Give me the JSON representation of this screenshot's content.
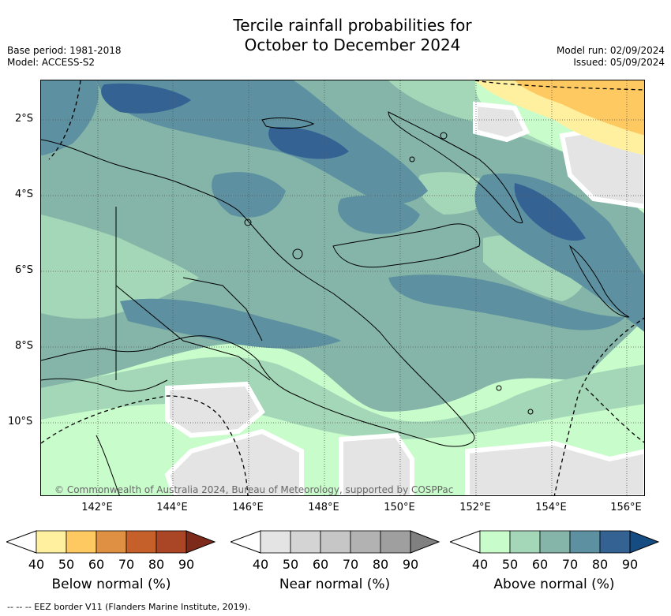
{
  "title_line1": "Tercile rainfall probabilities for",
  "title_line2": "October to December 2024",
  "base_period": "Base period: 1981-2018",
  "model": "Model: ACCESS-S2",
  "model_run": "Model run: 02/09/2024",
  "issued": "Issued: 05/09/2024",
  "lat_labels": [
    "2°S",
    "4°S",
    "6°S",
    "8°S",
    "10°S"
  ],
  "lon_labels": [
    "142°E",
    "144°E",
    "146°E",
    "148°E",
    "150°E",
    "152°E",
    "154°E",
    "156°E"
  ],
  "copyright": "© Commonwealth of Australia 2024, Bureau of Meteorology, supported by COSPPac",
  "footer": "--  --  -- EEZ border V11 (Flanders Marine Institute, 2019).",
  "colorbars": [
    {
      "label": "Below normal (%)",
      "ticks": [
        "40",
        "50",
        "60",
        "70",
        "80",
        "90"
      ],
      "colors": [
        "#fff09f",
        "#fec960",
        "#e09043",
        "#c5602a",
        "#aa4525",
        "#7e2a1a"
      ]
    },
    {
      "label": "Near normal (%)",
      "ticks": [
        "40",
        "50",
        "60",
        "70",
        "80",
        "90"
      ],
      "colors": [
        "#e4e4e4",
        "#d4d4d4",
        "#c6c6c6",
        "#b2b2b2",
        "#9f9f9f",
        "#808080"
      ]
    },
    {
      "label": "Above normal (%)",
      "ticks": [
        "40",
        "50",
        "60",
        "70",
        "80",
        "90"
      ],
      "colors": [
        "#c8fccb",
        "#a3d7b7",
        "#84b5a8",
        "#5d90a0",
        "#346293",
        "#154c82"
      ]
    }
  ]
}
